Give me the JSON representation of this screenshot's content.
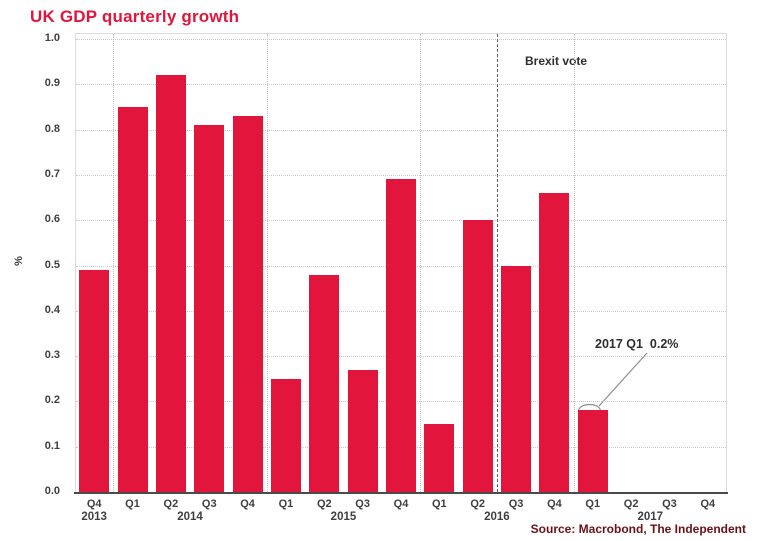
{
  "title": "UK GDP quarterly growth",
  "source": "Source: Macrobond, The Independent",
  "chart_data": {
    "type": "bar",
    "title": "UK GDP quarterly growth",
    "ylabel": "%",
    "ylim": [
      0.0,
      1.0
    ],
    "ytick_step": 0.1,
    "yticks": [
      "1.0",
      "0.9",
      "0.8",
      "0.7",
      "0.6",
      "0.5",
      "0.4",
      "0.3",
      "0.2",
      "0.1",
      "0.0"
    ],
    "grid": "horizontal dotted gridlines; dotted vertical year separators",
    "legend": "none",
    "categories": [
      "Q4 2013",
      "Q1 2014",
      "Q2 2014",
      "Q3 2014",
      "Q4 2014",
      "Q1 2015",
      "Q2 2015",
      "Q3 2015",
      "Q4 2015",
      "Q1 2016",
      "Q2 2016",
      "Q3 2016",
      "Q4 2016",
      "Q1 2017"
    ],
    "values": [
      0.49,
      0.85,
      0.92,
      0.81,
      0.83,
      0.25,
      0.48,
      0.27,
      0.69,
      0.15,
      0.6,
      0.5,
      0.66,
      0.18
    ],
    "quarter_ticks": [
      "Q4",
      "Q1",
      "Q2",
      "Q3",
      "Q4",
      "Q1",
      "Q2",
      "Q3",
      "Q4",
      "Q1",
      "Q2",
      "Q3",
      "Q4",
      "Q1",
      "Q2",
      "Q3",
      "Q4"
    ],
    "year_groups": [
      {
        "label": "2013",
        "start": 0,
        "end": 0
      },
      {
        "label": "2014",
        "start": 1,
        "end": 4
      },
      {
        "label": "2015",
        "start": 5,
        "end": 8
      },
      {
        "label": "2016",
        "start": 9,
        "end": 12
      },
      {
        "label": "2017",
        "start": 13,
        "end": 16
      }
    ],
    "brexit_line": {
      "label": "Brexit vote",
      "boundary_slot": 11
    },
    "annotation": {
      "text": "2017 Q1  0.2%",
      "target_category": "Q1 2017",
      "target_value": 0.18
    },
    "colors": {
      "bar": "#e2153c",
      "title": "#e2153c",
      "source": "#6b1115",
      "axis_text": "#3f3f3f",
      "annotation_text": "#2e2e2e"
    }
  }
}
